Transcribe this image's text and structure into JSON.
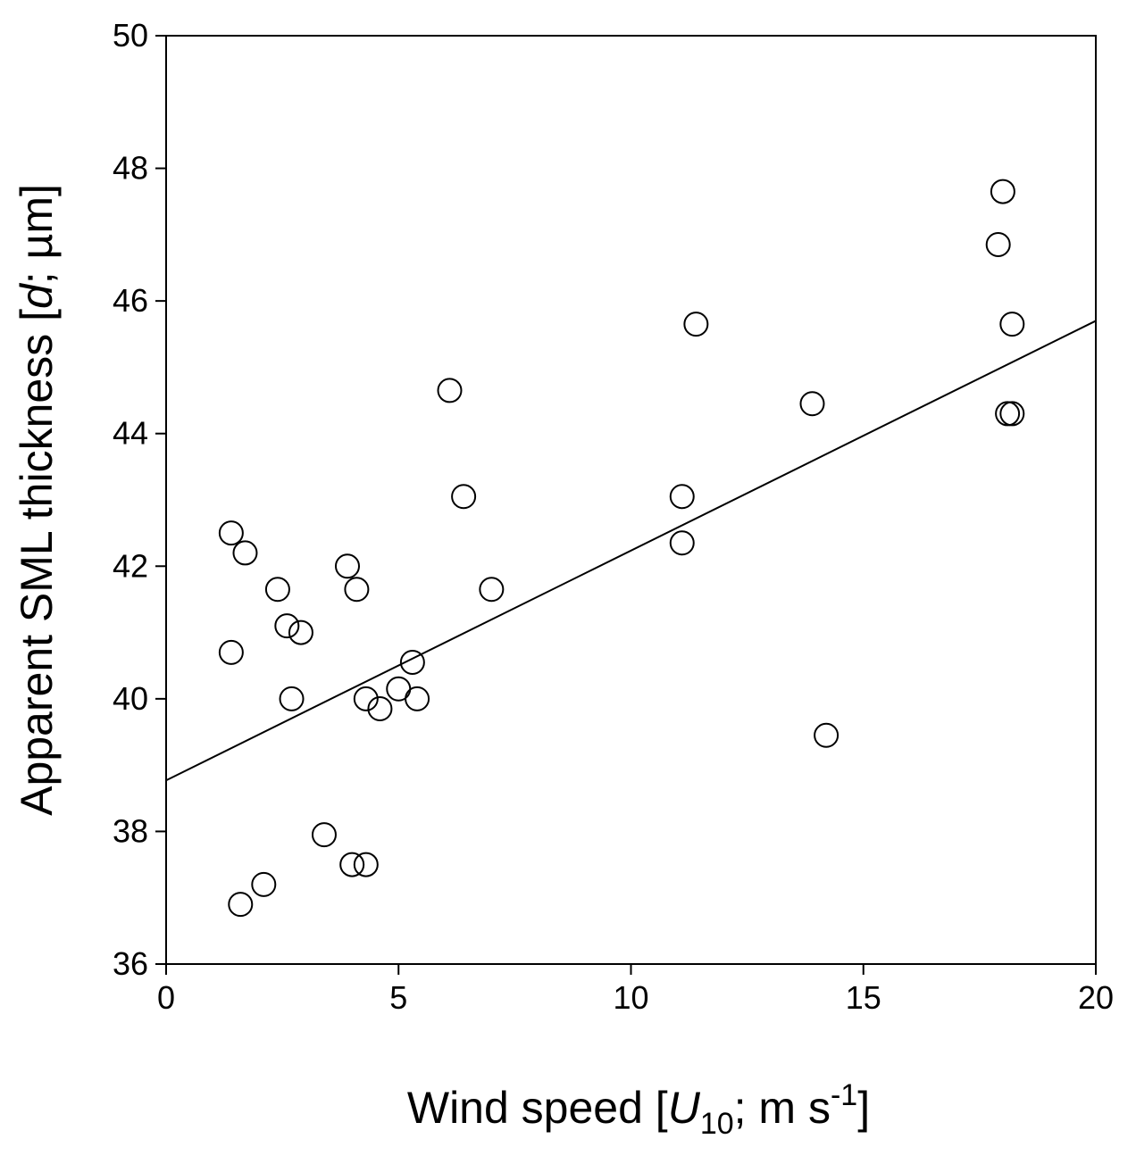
{
  "chart_data": {
    "type": "scatter",
    "xlabel_parts": {
      "pre": "Wind speed [",
      "var": "U",
      "sub": "10",
      "mid": "; m s",
      "sup": "-1",
      "post": "]"
    },
    "ylabel_parts": {
      "pre": "Apparent SML thickness [",
      "var": "d",
      "post": "; µm]"
    },
    "xlim": [
      0,
      20
    ],
    "ylim": [
      36,
      50
    ],
    "x_ticks": [
      0,
      5,
      10,
      15,
      20
    ],
    "y_ticks": [
      36,
      38,
      40,
      42,
      44,
      46,
      48,
      50
    ],
    "grid": false,
    "marker": "open-circle",
    "colors": {
      "marker_stroke": "#000000",
      "marker_fill": "#ffffff",
      "line": "#000000",
      "axis": "#000000"
    },
    "points": [
      {
        "x": 1.4,
        "y": 42.5
      },
      {
        "x": 1.7,
        "y": 42.2
      },
      {
        "x": 1.4,
        "y": 40.7
      },
      {
        "x": 1.6,
        "y": 36.9
      },
      {
        "x": 2.1,
        "y": 37.2
      },
      {
        "x": 2.4,
        "y": 41.65
      },
      {
        "x": 2.6,
        "y": 41.1
      },
      {
        "x": 2.9,
        "y": 41.0
      },
      {
        "x": 2.7,
        "y": 40.0
      },
      {
        "x": 3.4,
        "y": 37.95
      },
      {
        "x": 3.9,
        "y": 42.0
      },
      {
        "x": 4.1,
        "y": 41.65
      },
      {
        "x": 4.0,
        "y": 37.5
      },
      {
        "x": 4.3,
        "y": 37.5
      },
      {
        "x": 4.3,
        "y": 40.0
      },
      {
        "x": 4.6,
        "y": 39.85
      },
      {
        "x": 5.0,
        "y": 40.15
      },
      {
        "x": 5.3,
        "y": 40.55
      },
      {
        "x": 5.4,
        "y": 40.0
      },
      {
        "x": 6.1,
        "y": 44.65
      },
      {
        "x": 6.4,
        "y": 43.05
      },
      {
        "x": 7.0,
        "y": 41.65
      },
      {
        "x": 11.1,
        "y": 43.05
      },
      {
        "x": 11.1,
        "y": 42.35
      },
      {
        "x": 11.4,
        "y": 45.65
      },
      {
        "x": 13.9,
        "y": 44.45
      },
      {
        "x": 14.2,
        "y": 39.45
      },
      {
        "x": 17.9,
        "y": 46.85
      },
      {
        "x": 18.0,
        "y": 47.65
      },
      {
        "x": 18.1,
        "y": 44.3
      },
      {
        "x": 18.2,
        "y": 44.3
      },
      {
        "x": 18.2,
        "y": 45.65
      }
    ],
    "regression": {
      "x": [
        0,
        20
      ],
      "y": [
        38.77,
        45.7
      ]
    }
  }
}
